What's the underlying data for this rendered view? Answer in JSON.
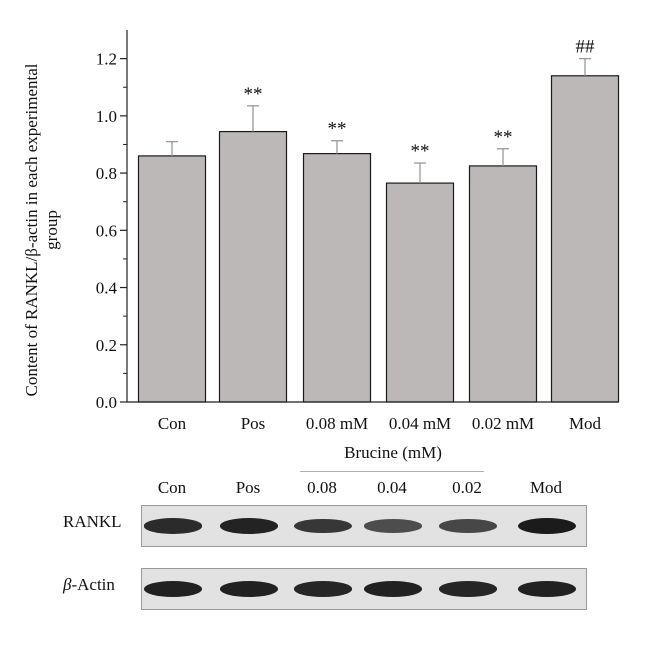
{
  "chart_data": {
    "type": "bar",
    "categories": [
      "Con",
      "Pos",
      "0.08 mM",
      "0.04 mM",
      "0.02 mM",
      "Mod"
    ],
    "values": [
      0.86,
      0.945,
      0.868,
      0.765,
      0.825,
      1.14
    ],
    "errors": [
      0.05,
      0.09,
      0.045,
      0.07,
      0.06,
      0.06
    ],
    "significance": [
      "",
      "**",
      "**",
      "**",
      "**",
      "##"
    ],
    "ylabel": "Content of RANKL/β-actin in each experimental group",
    "ylim": [
      0,
      1.3
    ],
    "yticks": [
      "0.0",
      "0.2",
      "0.4",
      "0.6",
      "0.8",
      "1.0",
      "1.2"
    ],
    "group_label": "Brucine (mM)",
    "bar_color": "#bcb8b8"
  },
  "blot": {
    "lanes": [
      "Con",
      "Pos",
      "0.08",
      "0.04",
      "0.02",
      "Mod"
    ],
    "rows": [
      {
        "label_prefix": "",
        "label": "RANKL",
        "intensities": [
          0.85,
          0.92,
          0.75,
          0.55,
          0.6,
          1.0
        ]
      },
      {
        "label_prefix": "β",
        "label": "-Actin",
        "intensities": [
          0.95,
          0.95,
          0.9,
          0.95,
          0.9,
          0.95
        ]
      }
    ]
  }
}
